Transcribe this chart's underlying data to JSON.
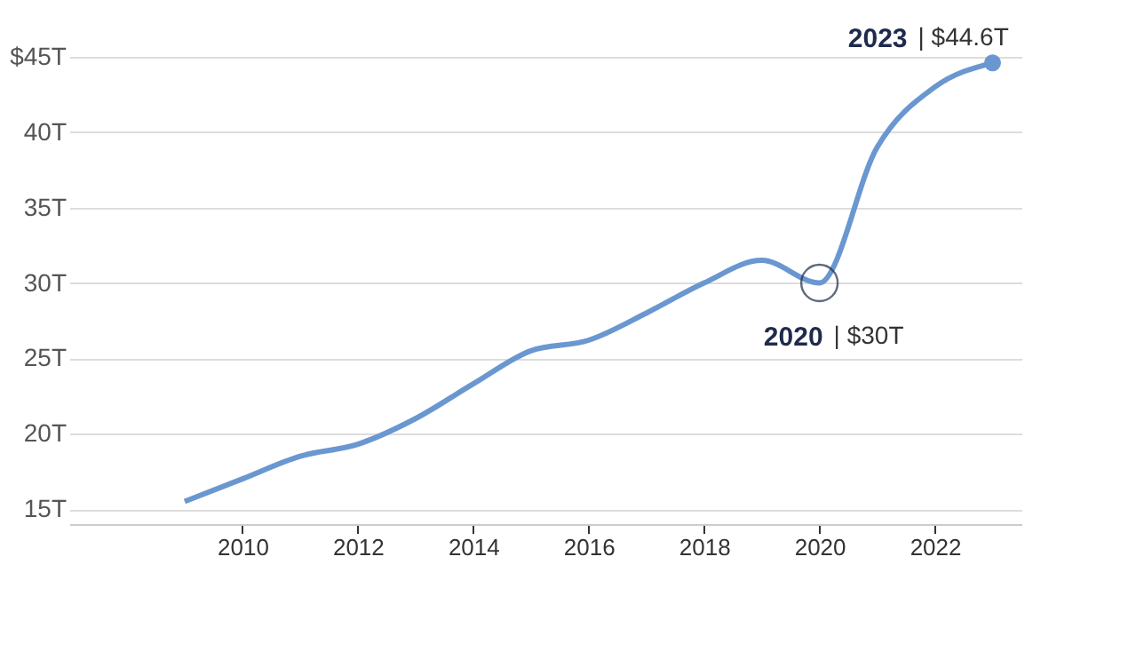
{
  "chart_data": {
    "type": "line",
    "x": [
      2009,
      2010,
      2011,
      2012,
      2013,
      2014,
      2015,
      2016,
      2017,
      2018,
      2019,
      2020,
      2021,
      2022,
      2023
    ],
    "series": [
      {
        "color": "#6a97d0",
        "values": [
          15.5,
          17,
          18.5,
          19.3,
          21,
          23.3,
          25.5,
          26.2,
          28,
          30,
          31.5,
          30,
          39,
          43,
          44.6
        ]
      }
    ],
    "xlim": [
      2007,
      2023.5
    ],
    "xticks": [
      2010,
      2012,
      2014,
      2016,
      2018,
      2020,
      2022
    ],
    "ylim": [
      14,
      45
    ],
    "yticks": [
      {
        "value": 15,
        "label": "15T"
      },
      {
        "value": 20,
        "label": "20T"
      },
      {
        "value": 25,
        "label": "25T"
      },
      {
        "value": 30,
        "label": "30T"
      },
      {
        "value": 35,
        "label": "35T"
      },
      {
        "value": 40,
        "label": "40T"
      },
      {
        "value": 45,
        "label": "$45T"
      }
    ],
    "grid": "y",
    "marker": "none",
    "line_style": "solid",
    "annotations": [
      {
        "text": "2020 | $30T",
        "x": 2020,
        "y": 30
      },
      {
        "text": "2023 | $44.6T",
        "x": 2023,
        "y": 44.6
      }
    ]
  }
}
